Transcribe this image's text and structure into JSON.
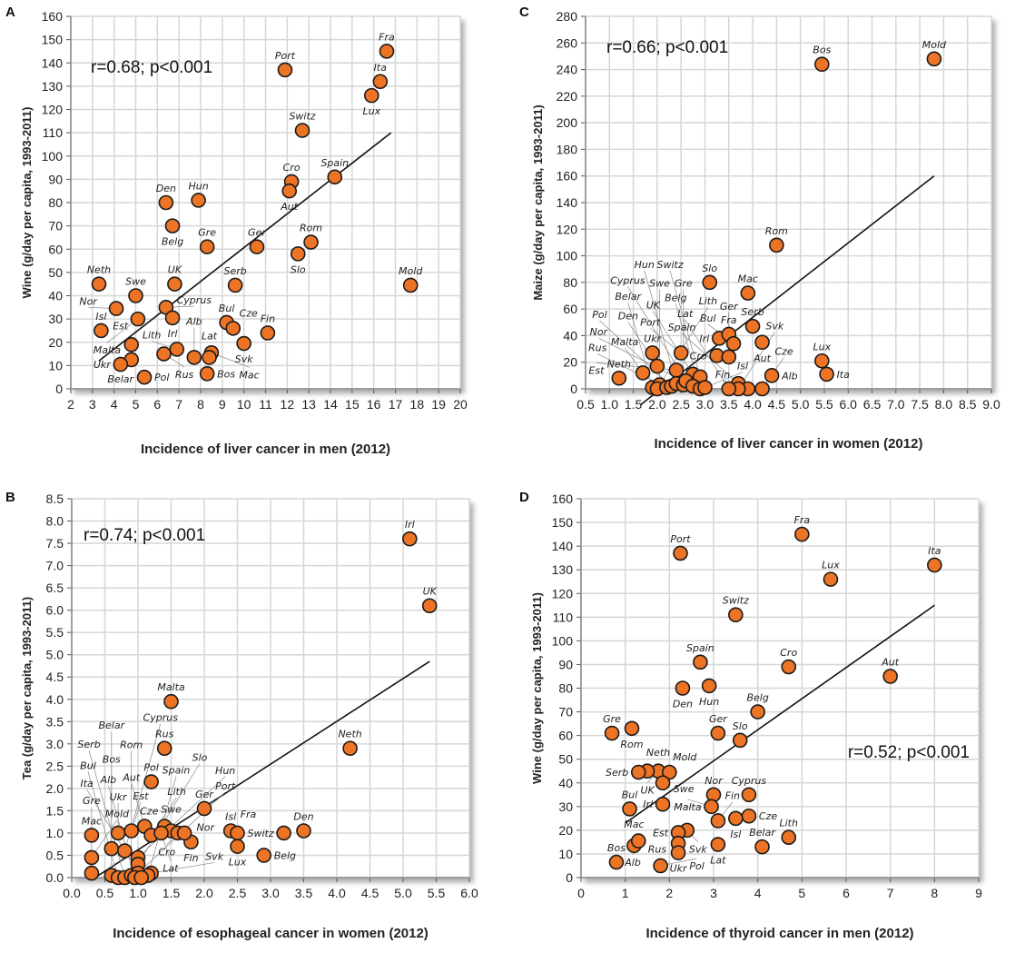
{
  "colors": {
    "point_fill": "#ec7424",
    "point_stroke": "#1a1a1a",
    "grid": "#d6d6d6",
    "line": "#111111"
  },
  "chart_data": [
    {
      "panel": "A",
      "type": "scatter",
      "xlabel": "Incidence of liver cancer in men  (2012)",
      "ylabel": "Wine (g/day per capita, 1993-2011)",
      "annotation": "r=0.68; p<0.001",
      "xlim": [
        2,
        20
      ],
      "ylim": [
        0,
        160
      ],
      "xticks": [
        "2",
        "3",
        "4",
        "5",
        "6",
        "7",
        "8",
        "9",
        "10",
        "11",
        "12",
        "13",
        "14",
        "15",
        "16",
        "17",
        "18",
        "19",
        "20"
      ],
      "yticks": [
        "0",
        "10",
        "20",
        "30",
        "40",
        "50",
        "60",
        "70",
        "80",
        "90",
        "100",
        "110",
        "120",
        "130",
        "140",
        "150",
        "160"
      ],
      "fit_line": [
        [
          3.3,
          12
        ],
        [
          16.8,
          110
        ]
      ],
      "points": [
        {
          "label": "Fra",
          "x": 16.6,
          "y": 145
        },
        {
          "label": "Ita",
          "x": 16.3,
          "y": 132
        },
        {
          "label": "Lux",
          "x": 15.9,
          "y": 126
        },
        {
          "label": "Port",
          "x": 11.9,
          "y": 137
        },
        {
          "label": "Switz",
          "x": 12.7,
          "y": 111
        },
        {
          "label": "Spain",
          "x": 14.2,
          "y": 91
        },
        {
          "label": "Cro",
          "x": 12.2,
          "y": 89
        },
        {
          "label": "Aut",
          "x": 12.1,
          "y": 85
        },
        {
          "label": "Hun",
          "x": 7.9,
          "y": 81
        },
        {
          "label": "Den",
          "x": 6.4,
          "y": 80
        },
        {
          "label": "Belg",
          "x": 6.7,
          "y": 70
        },
        {
          "label": "Gre",
          "x": 8.3,
          "y": 61
        },
        {
          "label": "Ger",
          "x": 10.6,
          "y": 61
        },
        {
          "label": "Rom",
          "x": 13.1,
          "y": 63
        },
        {
          "label": "Slo",
          "x": 12.5,
          "y": 58
        },
        {
          "label": "Mold",
          "x": 17.7,
          "y": 44.5
        },
        {
          "label": "Neth",
          "x": 3.3,
          "y": 45
        },
        {
          "label": "Swe",
          "x": 5.0,
          "y": 40
        },
        {
          "label": "UK",
          "x": 6.8,
          "y": 45
        },
        {
          "label": "Serb",
          "x": 9.6,
          "y": 44.5
        },
        {
          "label": "Nor",
          "x": 4.1,
          "y": 34.5
        },
        {
          "label": "Cyprus",
          "x": 6.4,
          "y": 35
        },
        {
          "label": "Malta",
          "x": 5.1,
          "y": 30
        },
        {
          "label": "Irl",
          "x": 6.7,
          "y": 30.5
        },
        {
          "label": "Isl",
          "x": 3.4,
          "y": 25
        },
        {
          "label": "Bul",
          "x": 9.2,
          "y": 28.5
        },
        {
          "label": "Cze",
          "x": 9.5,
          "y": 26
        },
        {
          "label": "Fin",
          "x": 11.1,
          "y": 24
        },
        {
          "label": "Est",
          "x": 4.8,
          "y": 19
        },
        {
          "label": "Svk",
          "x": 10.0,
          "y": 19.5
        },
        {
          "label": "Lith",
          "x": 6.9,
          "y": 17
        },
        {
          "label": "Rus",
          "x": 6.3,
          "y": 15
        },
        {
          "label": "Mac",
          "x": 8.5,
          "y": 15.5
        },
        {
          "label": "Lat",
          "x": 8.4,
          "y": 13.5
        },
        {
          "label": "Alb",
          "x": 7.7,
          "y": 13.5
        },
        {
          "label": "Belar",
          "x": 4.8,
          "y": 12.5
        },
        {
          "label": "Ukr",
          "x": 4.3,
          "y": 10.5
        },
        {
          "label": "Bos",
          "x": 8.3,
          "y": 6.5
        },
        {
          "label": "Pol",
          "x": 5.4,
          "y": 5
        }
      ]
    },
    {
      "panel": "C",
      "type": "scatter",
      "xlabel": "Incidence of liver cancer in women (2012)",
      "ylabel": "Maize (g/day per capita, 1993-2011)",
      "annotation": "r=0.66; p<0.001",
      "xlim": [
        0.5,
        9.0
      ],
      "ylim": [
        0,
        280
      ],
      "xticks": [
        "0.5",
        "1.0",
        "1.5",
        "2.0",
        "2.5",
        "3.0",
        "3.5",
        "4.0",
        "4.5",
        "5.0",
        "5.5",
        "6.0",
        "6.5",
        "7.0",
        "7.5",
        "8.0",
        "8.5",
        "9.0"
      ],
      "yticks": [
        "0",
        "20",
        "40",
        "60",
        "80",
        "100",
        "120",
        "140",
        "160",
        "180",
        "200",
        "220",
        "240",
        "260",
        "280"
      ],
      "fit_line": [
        [
          1.65,
          -12
        ],
        [
          7.8,
          160
        ]
      ],
      "points": [
        {
          "label": "Bos",
          "x": 5.45,
          "y": 244
        },
        {
          "label": "Mold",
          "x": 7.8,
          "y": 248
        },
        {
          "label": "Rom",
          "x": 4.5,
          "y": 108
        },
        {
          "label": "Slo",
          "x": 3.1,
          "y": 80
        },
        {
          "label": "Mac",
          "x": 3.9,
          "y": 72
        },
        {
          "label": "Serb",
          "x": 4.0,
          "y": 47
        },
        {
          "label": "Irl",
          "x": 3.3,
          "y": 38
        },
        {
          "label": "Fra",
          "x": 3.5,
          "y": 41
        },
        {
          "label": "Bul",
          "x": 3.6,
          "y": 34
        },
        {
          "label": "Aut",
          "x": 4.2,
          "y": 35
        },
        {
          "label": "Cro",
          "x": 3.25,
          "y": 25
        },
        {
          "label": "Ger",
          "x": 3.5,
          "y": 24
        },
        {
          "label": "Ukr",
          "x": 1.9,
          "y": 27
        },
        {
          "label": "Port",
          "x": 2.5,
          "y": 27
        },
        {
          "label": "Den",
          "x": 2.0,
          "y": 17
        },
        {
          "label": "Est",
          "x": 2.4,
          "y": 14
        },
        {
          "label": "Neth",
          "x": 1.2,
          "y": 8
        },
        {
          "label": "Malta",
          "x": 1.7,
          "y": 12
        },
        {
          "label": "UK",
          "x": 2.75,
          "y": 11
        },
        {
          "label": "Switz",
          "x": 2.9,
          "y": 9
        },
        {
          "label": "Lux",
          "x": 5.45,
          "y": 21
        },
        {
          "label": "Ita",
          "x": 5.55,
          "y": 11
        },
        {
          "label": "Alb",
          "x": 4.4,
          "y": 10
        },
        {
          "label": "Spain",
          "x": 3.7,
          "y": 4
        },
        {
          "label": "Cze",
          "x": 4.2,
          "y": 0
        },
        {
          "label": "Fin",
          "x": 3.9,
          "y": 0
        },
        {
          "label": "Svk",
          "x": 3.7,
          "y": 0
        },
        {
          "label": "Lat",
          "x": 3.5,
          "y": 0
        },
        {
          "label": "Belar",
          "x": 1.9,
          "y": 1
        },
        {
          "label": "Swe",
          "x": 2.05,
          "y": 3
        },
        {
          "label": "Lith",
          "x": 2.0,
          "y": 0
        },
        {
          "label": "Rus",
          "x": 2.2,
          "y": 1
        },
        {
          "label": "Pol",
          "x": 2.3,
          "y": 2
        },
        {
          "label": "Hun",
          "x": 2.4,
          "y": 4
        },
        {
          "label": "Gre",
          "x": 2.55,
          "y": 3
        },
        {
          "label": "Cyprus",
          "x": 2.6,
          "y": 6
        },
        {
          "label": "Nor",
          "x": 2.75,
          "y": 2
        },
        {
          "label": "Belg",
          "x": 2.9,
          "y": 0
        },
        {
          "label": "Isl",
          "x": 3.0,
          "y": 1
        }
      ]
    },
    {
      "panel": "B",
      "type": "scatter",
      "xlabel": "Incidence of esophageal cancer in women  (2012)",
      "ylabel": "Tea (g/day per capita, 1993-2011)",
      "annotation": "r=0.74; p<0.001",
      "xlim": [
        0,
        6.0
      ],
      "ylim": [
        0,
        8.5
      ],
      "xticks": [
        "0.0",
        "0.5",
        "1.0",
        "1.5",
        "2.0",
        "2.5",
        "3.0",
        "3.5",
        "4.0",
        "4.5",
        "5.0",
        "5.5",
        "6.0"
      ],
      "yticks": [
        "0.0",
        "0.5",
        "1.0",
        "1.5",
        "2.0",
        "2.5",
        "3.0",
        "3.5",
        "4.0",
        "4.5",
        "5.0",
        "5.5",
        "6.0",
        "6.5",
        "7.0",
        "7.5",
        "8.0",
        "8.5"
      ],
      "fit_line": [
        [
          0.3,
          -0.05
        ],
        [
          5.4,
          4.85
        ]
      ],
      "points": [
        {
          "label": "Irl",
          "x": 5.1,
          "y": 7.6
        },
        {
          "label": "UK",
          "x": 5.4,
          "y": 6.1
        },
        {
          "label": "Malta",
          "x": 1.5,
          "y": 3.95
        },
        {
          "label": "Rus",
          "x": 1.4,
          "y": 2.9
        },
        {
          "label": "Pol",
          "x": 1.2,
          "y": 2.15
        },
        {
          "label": "Neth",
          "x": 4.2,
          "y": 2.9
        },
        {
          "label": "Ger",
          "x": 2.0,
          "y": 1.55
        },
        {
          "label": "Den",
          "x": 3.5,
          "y": 1.05
        },
        {
          "label": "Switz",
          "x": 3.2,
          "y": 1.0
        },
        {
          "label": "Isl",
          "x": 2.4,
          "y": 1.05
        },
        {
          "label": "Fra",
          "x": 2.5,
          "y": 1.0
        },
        {
          "label": "Lux",
          "x": 2.5,
          "y": 0.7
        },
        {
          "label": "Belg",
          "x": 2.9,
          "y": 0.5
        },
        {
          "label": "Fin",
          "x": 1.8,
          "y": 0.8
        },
        {
          "label": "Mac",
          "x": 0.3,
          "y": 0.95
        },
        {
          "label": "Mold",
          "x": 0.3,
          "y": 0.45
        },
        {
          "label": "Gre",
          "x": 0.3,
          "y": 0.1
        },
        {
          "label": "Ukr",
          "x": 0.7,
          "y": 1.0
        },
        {
          "label": "Est",
          "x": 0.9,
          "y": 1.05
        },
        {
          "label": "Aut",
          "x": 1.1,
          "y": 1.15
        },
        {
          "label": "Cze",
          "x": 1.4,
          "y": 1.15
        },
        {
          "label": "Lith",
          "x": 1.2,
          "y": 0.95
        },
        {
          "label": "Swe",
          "x": 1.5,
          "y": 1.05
        },
        {
          "label": "Cro",
          "x": 1.6,
          "y": 1.0
        },
        {
          "label": "Nor",
          "x": 1.7,
          "y": 1.0
        },
        {
          "label": "Lat",
          "x": 1.35,
          "y": 1.0
        },
        {
          "label": "Belar",
          "x": 0.6,
          "y": 0.65
        },
        {
          "label": "Cyprus",
          "x": 0.8,
          "y": 0.6
        },
        {
          "label": "Hun",
          "x": 1.0,
          "y": 0.45
        },
        {
          "label": "Slo",
          "x": 1.0,
          "y": 0.3
        },
        {
          "label": "Svk",
          "x": 1.2,
          "y": 0.1
        },
        {
          "label": "Spain",
          "x": 1.15,
          "y": 0.05
        },
        {
          "label": "Bos",
          "x": 0.6,
          "y": 0.05
        },
        {
          "label": "Bul",
          "x": 0.7,
          "y": 0.0
        },
        {
          "label": "Serb",
          "x": 0.8,
          "y": 0.0
        },
        {
          "label": "Rom",
          "x": 0.9,
          "y": 0.05
        },
        {
          "label": "Port",
          "x": 1.0,
          "y": 0.1
        },
        {
          "label": "Alb",
          "x": 0.95,
          "y": 0.0
        },
        {
          "label": "Ita",
          "x": 1.05,
          "y": 0.0
        }
      ]
    },
    {
      "panel": "D",
      "type": "scatter",
      "xlabel": "Incidence of thyroid cancer in men  (2012)",
      "ylabel": "Wine (g/day per capita, 1993-2011)",
      "annotation": "r=0.52; p<0.001",
      "xlim": [
        0,
        9
      ],
      "ylim": [
        0,
        160
      ],
      "xticks": [
        "0",
        "1",
        "2",
        "3",
        "4",
        "5",
        "6",
        "7",
        "8",
        "9"
      ],
      "yticks": [
        "0",
        "10",
        "20",
        "30",
        "40",
        "50",
        "60",
        "70",
        "80",
        "90",
        "100",
        "110",
        "120",
        "130",
        "140",
        "150",
        "160"
      ],
      "fit_line": [
        [
          1.0,
          23
        ],
        [
          8.0,
          115
        ]
      ],
      "points": [
        {
          "label": "Fra",
          "x": 5.0,
          "y": 145
        },
        {
          "label": "Ita",
          "x": 8.0,
          "y": 132
        },
        {
          "label": "Lux",
          "x": 5.65,
          "y": 126
        },
        {
          "label": "Port",
          "x": 2.25,
          "y": 137
        },
        {
          "label": "Switz",
          "x": 3.5,
          "y": 111
        },
        {
          "label": "Spain",
          "x": 2.7,
          "y": 91
        },
        {
          "label": "Cro",
          "x": 4.7,
          "y": 89
        },
        {
          "label": "Aut",
          "x": 7.0,
          "y": 85
        },
        {
          "label": "Hun",
          "x": 2.9,
          "y": 81
        },
        {
          "label": "Den",
          "x": 2.3,
          "y": 80
        },
        {
          "label": "Belg",
          "x": 4.0,
          "y": 70
        },
        {
          "label": "Gre",
          "x": 0.7,
          "y": 61
        },
        {
          "label": "Rom",
          "x": 1.15,
          "y": 63
        },
        {
          "label": "Ger",
          "x": 3.1,
          "y": 61
        },
        {
          "label": "Slo",
          "x": 3.6,
          "y": 58
        },
        {
          "label": "UK",
          "x": 1.75,
          "y": 45
        },
        {
          "label": "Neth",
          "x": 1.5,
          "y": 45
        },
        {
          "label": "Mold",
          "x": 2.0,
          "y": 44.5
        },
        {
          "label": "Serb",
          "x": 1.3,
          "y": 44.5
        },
        {
          "label": "Swe",
          "x": 1.85,
          "y": 40
        },
        {
          "label": "Nor",
          "x": 3.0,
          "y": 35
        },
        {
          "label": "Cyprus",
          "x": 3.8,
          "y": 35
        },
        {
          "label": "Malta",
          "x": 2.95,
          "y": 30
        },
        {
          "label": "Bul",
          "x": 1.1,
          "y": 29
        },
        {
          "label": "Irl",
          "x": 1.85,
          "y": 31
        },
        {
          "label": "Fin",
          "x": 3.1,
          "y": 24
        },
        {
          "label": "Cze",
          "x": 3.8,
          "y": 26
        },
        {
          "label": "Isl",
          "x": 3.5,
          "y": 25
        },
        {
          "label": "Svk",
          "x": 2.4,
          "y": 20
        },
        {
          "label": "Est",
          "x": 2.2,
          "y": 19
        },
        {
          "label": "Lith",
          "x": 4.7,
          "y": 17
        },
        {
          "label": "Rus",
          "x": 2.2,
          "y": 14.5
        },
        {
          "label": "Lat",
          "x": 3.1,
          "y": 14
        },
        {
          "label": "Mac",
          "x": 1.2,
          "y": 13.5
        },
        {
          "label": "Alb",
          "x": 1.3,
          "y": 15.5
        },
        {
          "label": "Belar",
          "x": 4.1,
          "y": 13
        },
        {
          "label": "Ukr",
          "x": 2.2,
          "y": 10.5
        },
        {
          "label": "Bos",
          "x": 0.8,
          "y": 6.5
        },
        {
          "label": "Pol",
          "x": 1.8,
          "y": 5
        }
      ]
    }
  ]
}
